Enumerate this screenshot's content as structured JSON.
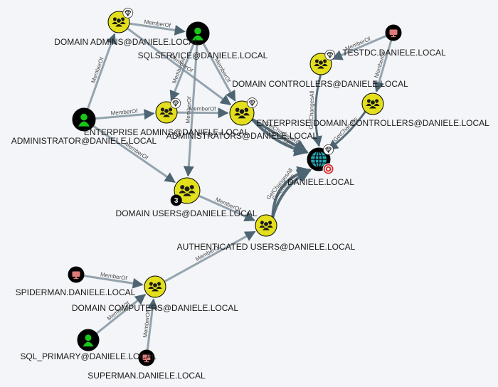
{
  "colors": {
    "background": "#f3f5f8",
    "group": "#e3df1c",
    "user": "#19c619",
    "computer": "#e07a7a",
    "domain": "#25a7b8",
    "node_border": "#000000",
    "edge": "#7c8f9a",
    "edge_dark": "#4d6572",
    "target_badge": "#d33333"
  },
  "nodes": [
    {
      "id": "domain-admins",
      "type": "group",
      "label": "DOMAIN ADMINS@DANIELE.LOCAL",
      "badge": "diamond-icon"
    },
    {
      "id": "sqlservice",
      "type": "user",
      "label": "SQLSERVICE@DANIELE.LOCAL"
    },
    {
      "id": "testdc",
      "type": "computer",
      "label": "TESTDC.DANIELE.LOCAL"
    },
    {
      "id": "domain-controllers",
      "type": "group",
      "label": "DOMAIN CONTROLLERS@DANIELE.LOCAL",
      "badge": "diamond-icon"
    },
    {
      "id": "enterprise-domain-controllers",
      "type": "group",
      "label": "ENTERPRISE DOMAIN CONTROLLERS@DANIELE.LOCAL"
    },
    {
      "id": "administrator",
      "type": "user",
      "label": "ADMINISTRATOR@DANIELE.LOCAL"
    },
    {
      "id": "enterprise-admins",
      "type": "group",
      "label": "ENTERPRISE ADMINS@DANIELE.LOCAL",
      "badge": "diamond-icon"
    },
    {
      "id": "administrators",
      "type": "group",
      "label": "ADMINISTRATORS@DANIELE.LOCAL",
      "badge": "diamond-icon"
    },
    {
      "id": "daniele-local",
      "type": "domain",
      "label": "DANIELE.LOCAL",
      "badge": "diamond-icon",
      "target": true
    },
    {
      "id": "domain-users",
      "type": "group",
      "label": "DOMAIN USERS@DANIELE.LOCAL",
      "count": "3"
    },
    {
      "id": "authenticated-users",
      "type": "group",
      "label": "AUTHENTICATED USERS@DANIELE.LOCAL"
    },
    {
      "id": "spiderman",
      "type": "computer",
      "label": "SPIDERMAN.DANIELE.LOCAL"
    },
    {
      "id": "domain-computers",
      "type": "group",
      "label": "DOMAIN COMPUTERS@DANIELE.LOCAL"
    },
    {
      "id": "sql-primary",
      "type": "user",
      "label": "SQL_PRIMARY@DANIELE.LOCAL"
    },
    {
      "id": "superman",
      "type": "computer",
      "label": "SUPERMAN.DANIELE.LOCAL"
    }
  ],
  "edges": [
    {
      "from": "administrator",
      "to": "domain-admins",
      "label": "MemberOf"
    },
    {
      "from": "domain-admins",
      "to": "sqlservice",
      "label": "MemberOf"
    },
    {
      "from": "administrator",
      "to": "enterprise-admins",
      "label": "MemberOf"
    },
    {
      "from": "enterprise-admins",
      "to": "administrators",
      "label": "MemberOf"
    },
    {
      "from": "administrator",
      "to": "domain-users",
      "label": "MemberOf"
    },
    {
      "from": "sqlservice",
      "to": "enterprise-admins",
      "label": "MemberOf"
    },
    {
      "from": "sqlservice",
      "to": "domain-users",
      "label": "MemberOf"
    },
    {
      "from": "sqlservice",
      "to": "administrators",
      "label": "MemberOf"
    },
    {
      "from": "domain-admins",
      "to": "administrators",
      "label": "MemberOf"
    },
    {
      "from": "testdc",
      "to": "domain-controllers",
      "label": "MemberOf"
    },
    {
      "from": "testdc",
      "to": "enterprise-domain-controllers",
      "label": "MemberOf"
    },
    {
      "from": "domain-controllers",
      "to": "daniele-local",
      "label": "GetChangesAll"
    },
    {
      "from": "enterprise-domain-controllers",
      "to": "daniele-local",
      "label": "GetChanges"
    },
    {
      "from": "administrators",
      "to": "daniele-local",
      "label": "GetChangesAll"
    },
    {
      "from": "administrators",
      "to": "daniele-local",
      "label": "GetChanges"
    },
    {
      "from": "domain-users",
      "to": "authenticated-users",
      "label": "MemberOf"
    },
    {
      "from": "authenticated-users",
      "to": "daniele-local",
      "label": "GetChangesAll"
    },
    {
      "from": "authenticated-users",
      "to": "daniele-local",
      "label": "GetChanges"
    },
    {
      "from": "domain-computers",
      "to": "authenticated-users",
      "label": "MemberOf"
    },
    {
      "from": "spiderman",
      "to": "domain-computers",
      "label": "MemberOf"
    },
    {
      "from": "sql-primary",
      "to": "domain-computers",
      "label": "MemberOf"
    },
    {
      "from": "superman",
      "to": "domain-computers",
      "label": "MemberOf"
    }
  ]
}
